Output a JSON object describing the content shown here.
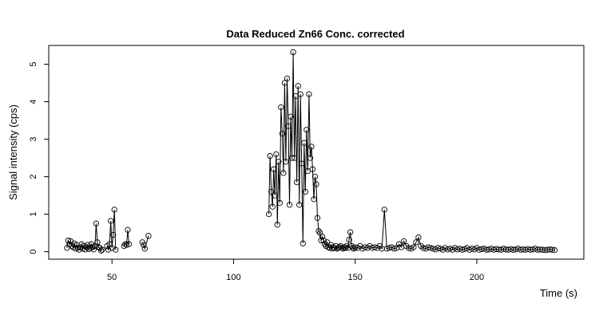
{
  "chart_data": {
    "type": "line",
    "title": "Data Reduced Zn66 Conc. corrected",
    "xlabel": "Time (s)",
    "ylabel": "Signal intensity (cps)",
    "xlim": [
      24,
      244
    ],
    "ylim": [
      -0.2,
      5.5
    ],
    "xticks": [
      50,
      100,
      150,
      200
    ],
    "yticks": [
      0,
      1,
      2,
      3,
      4,
      5
    ],
    "grid": false,
    "series": [
      {
        "segments": [
          {
            "x": [
              31.5,
              32.0,
              32.5,
              33.0,
              33.5,
              34.0,
              34.5,
              35.0,
              35.5,
              36.0,
              36.5,
              37.0,
              37.5,
              38.0,
              38.5,
              39.0,
              39.5,
              40.0,
              40.5,
              41.0,
              41.5,
              42.0,
              42.5,
              43.0,
              43.5,
              44.0,
              44.5,
              45.0,
              45.5,
              46.0
            ],
            "y": [
              0.1,
              0.3,
              0.2,
              0.28,
              0.15,
              0.12,
              0.22,
              0.08,
              0.18,
              0.1,
              0.05,
              0.12,
              0.2,
              0.08,
              0.15,
              0.06,
              0.12,
              0.18,
              0.07,
              0.1,
              0.2,
              0.12,
              0.06,
              0.15,
              0.75,
              0.25,
              0.12,
              0.1,
              0.03,
              0.05
            ]
          },
          {
            "x": [
              48.0,
              48.5,
              49.0,
              49.5,
              50.0,
              50.5,
              51.0,
              51.5
            ],
            "y": [
              0.15,
              0.05,
              0.2,
              0.82,
              0.1,
              0.45,
              1.12,
              0.05
            ]
          },
          {
            "x": [
              55.0,
              55.5,
              56.0,
              56.5,
              57.0
            ],
            "y": [
              0.15,
              0.2,
              0.18,
              0.58,
              0.2
            ]
          },
          {
            "x": [
              62.5,
              63.0,
              63.5,
              65.0
            ],
            "y": [
              0.25,
              0.18,
              0.08,
              0.42
            ]
          },
          {
            "x": [
              114.5,
              115.0,
              115.5,
              116.0,
              116.5,
              117.0,
              117.5,
              118.0,
              118.5,
              119.0,
              119.5,
              120.0,
              120.5,
              121.0,
              121.5,
              122.0,
              122.5,
              123.0,
              123.5,
              124.0,
              124.5,
              125.0,
              125.5,
              126.0,
              126.5,
              127.0,
              127.5,
              128.0,
              128.5,
              129.0,
              129.5,
              130.0,
              130.5,
              131.0,
              131.5,
              132.0,
              132.5,
              133.0,
              133.5,
              134.0,
              134.5,
              135.0,
              135.5,
              136.0,
              136.5,
              137.0,
              137.5,
              138.0,
              138.5,
              139.0,
              139.5,
              140.0,
              140.5,
              141.0,
              141.5,
              142.0,
              142.5,
              143.0,
              143.5,
              144.0,
              144.5,
              145.0,
              145.5,
              146.0,
              146.5,
              147.0,
              147.5,
              148.0,
              148.5,
              149.0,
              149.5,
              150.0,
              151.0,
              152.0,
              153.0,
              154.0,
              155.0,
              156.0,
              157.0,
              158.0,
              159.0,
              160.0,
              161.0,
              162.0,
              163.0,
              164.0,
              165.0,
              166.0,
              167.0,
              168.0,
              169.0,
              170.0,
              171.0,
              172.0,
              173.0,
              174.0,
              175.0,
              176.0,
              177.0,
              178.0,
              179.0,
              180.0,
              181.0,
              182.0,
              183.0,
              184.0,
              185.0,
              186.0,
              187.0,
              188.0,
              189.0,
              190.0,
              191.0,
              192.0,
              193.0,
              194.0,
              195.0,
              196.0,
              197.0,
              198.0,
              199.0,
              200.0,
              201.0,
              202.0,
              203.0,
              204.0,
              205.0,
              206.0,
              207.0,
              208.0,
              209.0,
              210.0,
              211.0,
              212.0,
              213.0,
              214.0,
              215.0,
              216.0,
              217.0,
              218.0,
              219.0,
              220.0,
              221.0,
              222.0,
              223.0,
              224.0,
              225.0,
              226.0,
              227.0,
              228.0,
              229.0,
              230.0,
              231.0,
              232.0
            ],
            "y": [
              1.0,
              2.55,
              1.6,
              1.2,
              2.2,
              1.5,
              2.6,
              0.72,
              2.4,
              1.3,
              3.85,
              3.15,
              2.1,
              4.5,
              2.4,
              4.62,
              3.35,
              1.25,
              3.6,
              2.5,
              5.32,
              2.5,
              4.15,
              1.85,
              4.42,
              1.25,
              4.2,
              2.35,
              0.22,
              2.9,
              1.6,
              3.25,
              2.15,
              4.2,
              2.5,
              2.8,
              2.2,
              1.4,
              2.0,
              1.8,
              0.9,
              0.55,
              0.5,
              0.3,
              0.4,
              0.3,
              0.2,
              0.15,
              0.25,
              0.12,
              0.1,
              0.18,
              0.08,
              0.12,
              0.1,
              0.15,
              0.08,
              0.1,
              0.12,
              0.15,
              0.1,
              0.08,
              0.12,
              0.1,
              0.15,
              0.1,
              0.32,
              0.52,
              0.15,
              0.1,
              0.08,
              0.12,
              0.1,
              0.15,
              0.08,
              0.12,
              0.1,
              0.15,
              0.1,
              0.12,
              0.1,
              0.15,
              0.08,
              1.12,
              0.08,
              0.1,
              0.12,
              0.08,
              0.1,
              0.2,
              0.12,
              0.28,
              0.15,
              0.1,
              0.08,
              0.12,
              0.25,
              0.38,
              0.15,
              0.1,
              0.08,
              0.12,
              0.1,
              0.08,
              0.06,
              0.1,
              0.08,
              0.05,
              0.1,
              0.06,
              0.08,
              0.05,
              0.1,
              0.06,
              0.08,
              0.05,
              0.07,
              0.1,
              0.05,
              0.08,
              0.06,
              0.1,
              0.05,
              0.07,
              0.08,
              0.05,
              0.06,
              0.08,
              0.05,
              0.07,
              0.06,
              0.05,
              0.08,
              0.06,
              0.05,
              0.07,
              0.05,
              0.06,
              0.08,
              0.05,
              0.06,
              0.05,
              0.07,
              0.05,
              0.06,
              0.08,
              0.05,
              0.06,
              0.05,
              0.04,
              0.05,
              0.06,
              0.05,
              0.04
            ]
          }
        ]
      }
    ]
  }
}
